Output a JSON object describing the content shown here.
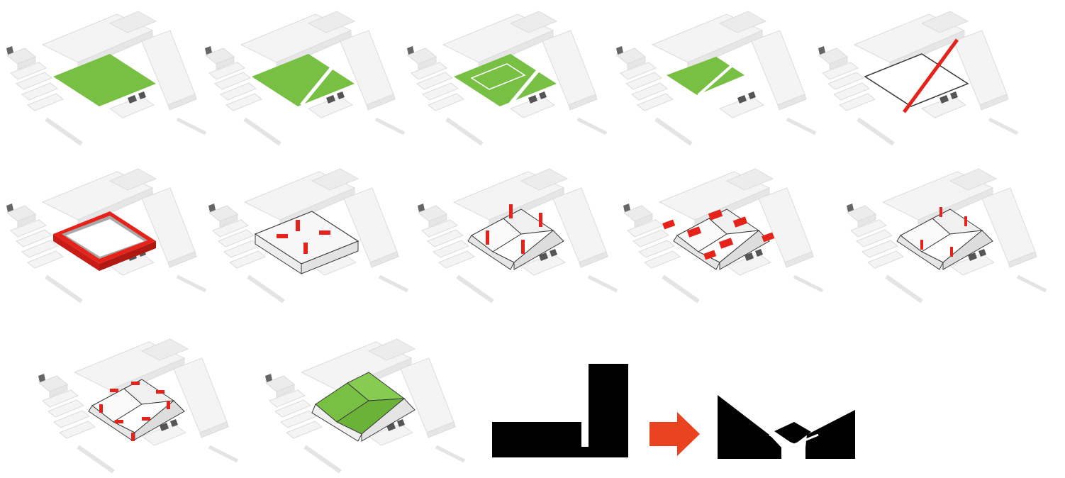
{
  "colors": {
    "background": "#ffffff",
    "context_building": "#f4f4f4",
    "context_edge": "#dcdcdc",
    "context_side": "#e6e6e6",
    "green": "#77c043",
    "red": "#e5231b",
    "orange_arrow": "#e9431f",
    "black": "#000000",
    "outline": "#3a3a3a"
  },
  "steps": [
    {
      "id": 1,
      "stage": "green-site-plane"
    },
    {
      "id": 2,
      "stage": "green-plane-split-by-path"
    },
    {
      "id": 3,
      "stage": "green-plane-with-outlines"
    },
    {
      "id": 4,
      "stage": "green-plane-reduced"
    },
    {
      "id": 5,
      "stage": "outline-with-red-axis"
    },
    {
      "id": 6,
      "stage": "red-perimeter-ring"
    },
    {
      "id": 7,
      "stage": "white-box-red-markers"
    },
    {
      "id": 8,
      "stage": "folded-roof-red-posts"
    },
    {
      "id": 9,
      "stage": "folded-roof-red-pads"
    },
    {
      "id": 10,
      "stage": "folded-roof-small-red-posts"
    },
    {
      "id": 11,
      "stage": "folded-roof-red-dashes"
    },
    {
      "id": 12,
      "stage": "green-folded-roof"
    }
  ],
  "section_diagram": {
    "icons": [
      "flat-and-tower-massing-icon",
      "right-arrow-icon",
      "folded-roof-massing-icon"
    ]
  }
}
